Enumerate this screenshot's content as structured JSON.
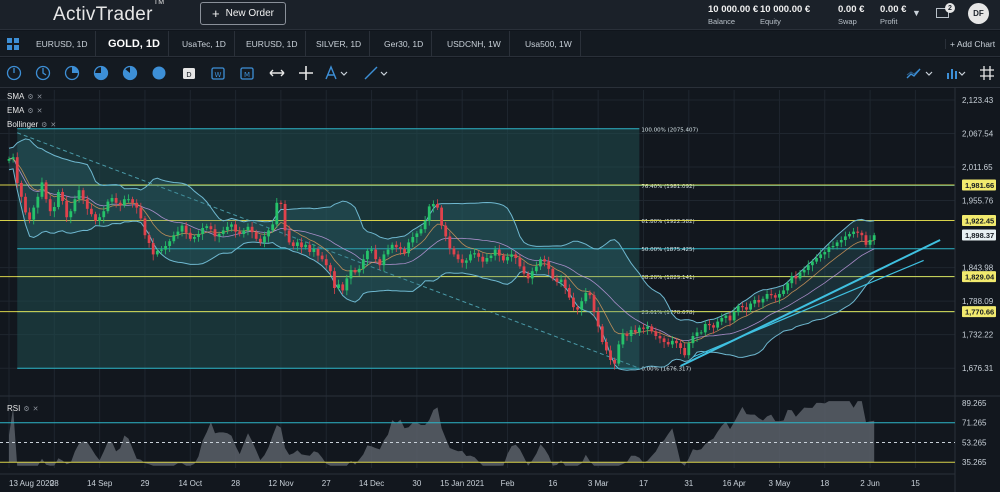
{
  "header": {
    "logo": "ActivTrader",
    "logo_mark": "TM",
    "new_order_label": "New Order",
    "balance": {
      "value": "10 000.00 €",
      "label": "Balance"
    },
    "equity": {
      "value": "10 000.00 €",
      "label": "Equity"
    },
    "swap": {
      "value": "0.00 €",
      "label": "Swap"
    },
    "profit": {
      "value": "0.00 €",
      "label": "Profit"
    },
    "messages_count": "2",
    "avatar_initials": "DF"
  },
  "tabs": [
    {
      "label": "EURUSD, 1D"
    },
    {
      "label": "GOLD, 1D",
      "active": true
    },
    {
      "label": "UsaTec, 1D"
    },
    {
      "label": "EURUSD, 1D"
    },
    {
      "label": "SILVER, 1D"
    },
    {
      "label": "Ger30, 1D"
    },
    {
      "label": "USDCNH, 1W"
    },
    {
      "label": "Usa500, 1W"
    }
  ],
  "add_chart_label": "+ Add Chart",
  "indicators": [
    "SMA",
    "EMA",
    "Bollinger"
  ],
  "rsi_label": "RSI",
  "colors": {
    "up": "#26c26a",
    "down": "#e0424c",
    "fib": "#2cb5c8",
    "hline": "#d8d24a",
    "trend": "#3fc0e0",
    "bb": "#6fb8d0",
    "price_tag": "#f2ea6e"
  },
  "chart_data": {
    "type": "candlestick",
    "symbol": "GOLD, 1D",
    "ylim": [
      1640,
      2140
    ],
    "y_ticks": [
      "2,123.43",
      "2,067.54",
      "2,011.65",
      "1,955.76",
      "1,843.98",
      "1,788.09",
      "1,732.22",
      "1,676.31"
    ],
    "y_tick_values": [
      2123.43,
      2067.54,
      2011.65,
      1955.76,
      1843.98,
      1788.09,
      1732.22,
      1676.31
    ],
    "x_ticks": [
      "13 Aug 2020",
      "28",
      "14 Sep",
      "29",
      "14 Oct",
      "28",
      "12 Nov",
      "27",
      "14 Dec",
      "30",
      "15 Jan 2021",
      "Feb",
      "16",
      "3 Mar",
      "17",
      "31",
      "16 Apr",
      "3 May",
      "18",
      "2 Jun",
      "15"
    ],
    "x_tick_index": [
      0,
      11,
      22,
      33,
      44,
      55,
      66,
      77,
      88,
      99,
      110,
      121,
      132,
      143,
      154,
      165,
      176,
      187,
      198,
      209,
      220
    ],
    "closes": [
      2025,
      2028,
      1985,
      1962,
      1936,
      1924,
      1944,
      1962,
      1986,
      1958,
      1938,
      1945,
      1970,
      1955,
      1928,
      1938,
      1958,
      1973,
      1958,
      1942,
      1933,
      1922,
      1928,
      1938,
      1954,
      1960,
      1952,
      1948,
      1958,
      1958,
      1952,
      1944,
      1926,
      1898,
      1885,
      1866,
      1872,
      1874,
      1880,
      1888,
      1898,
      1904,
      1914,
      1902,
      1892,
      1895,
      1900,
      1910,
      1913,
      1908,
      1896,
      1900,
      1906,
      1912,
      1916,
      1904,
      1900,
      1906,
      1912,
      1903,
      1892,
      1886,
      1896,
      1906,
      1916,
      1952,
      1950,
      1906,
      1886,
      1880,
      1886,
      1878,
      1882,
      1870,
      1875,
      1864,
      1858,
      1848,
      1838,
      1810,
      1816,
      1806,
      1826,
      1840,
      1836,
      1842,
      1858,
      1872,
      1874,
      1858,
      1848,
      1866,
      1874,
      1882,
      1878,
      1875,
      1868,
      1886,
      1895,
      1901,
      1908,
      1922,
      1946,
      1950,
      1944,
      1914,
      1896,
      1876,
      1866,
      1858,
      1852,
      1856,
      1866,
      1868,
      1862,
      1854,
      1860,
      1864,
      1874,
      1864,
      1856,
      1862,
      1866,
      1860,
      1846,
      1834,
      1826,
      1838,
      1846,
      1858,
      1854,
      1842,
      1826,
      1820,
      1824,
      1810,
      1794,
      1778,
      1774,
      1788,
      1802,
      1798,
      1770,
      1746,
      1720,
      1706,
      1690,
      1684,
      1716,
      1734,
      1730,
      1740,
      1736,
      1744,
      1742,
      1746,
      1738,
      1730,
      1726,
      1720,
      1716,
      1722,
      1718,
      1710,
      1698,
      1718,
      1730,
      1736,
      1736,
      1750,
      1748,
      1744,
      1754,
      1760,
      1764,
      1756,
      1770,
      1780,
      1778,
      1774,
      1784,
      1790,
      1786,
      1792,
      1800,
      1798,
      1794,
      1800,
      1806,
      1818,
      1830,
      1826,
      1836,
      1840,
      1848,
      1854,
      1860,
      1866,
      1870,
      1878,
      1880,
      1886,
      1890,
      1896,
      1900,
      1904,
      1902,
      1898,
      1882,
      1890,
      1898
    ],
    "lines": {
      "fib_levels": [
        {
          "label": "100.00% (2075.407)",
          "value": 2075.407
        },
        {
          "label": "76.40% (1981.092)",
          "value": 1981.092
        },
        {
          "label": "61.80% (1922.582)",
          "value": 1922.582
        },
        {
          "label": "50.00% (1875.425)",
          "value": 1875.425
        },
        {
          "label": "38.20% (1829.141)",
          "value": 1829.141
        },
        {
          "label": "23.61% (1770.678)",
          "value": 1770.678
        },
        {
          "label": "0.00% (1676.317)",
          "value": 1676.317
        }
      ],
      "horizontal_levels": [
        1981.66,
        1922.45,
        1829.04,
        1770.66
      ],
      "current_price": 1898.37
    },
    "price_tags": [
      {
        "label": "1,981.66",
        "value": 1981.66
      },
      {
        "label": "1,922.45",
        "value": 1922.45
      },
      {
        "label": "1,898.37",
        "value": 1898.37,
        "current": true
      },
      {
        "label": "1,829.04",
        "value": 1829.04
      },
      {
        "label": "1,770.66",
        "value": 1770.66
      }
    ],
    "rsi": {
      "y_ticks": [
        "89.265",
        "71.265",
        "53.265",
        "35.265"
      ],
      "y_tick_values": [
        89.265,
        71.265,
        53.265,
        35.265
      ],
      "ylim": [
        30,
        92
      ],
      "levels": [
        71.265,
        53.265,
        35.265
      ]
    }
  }
}
